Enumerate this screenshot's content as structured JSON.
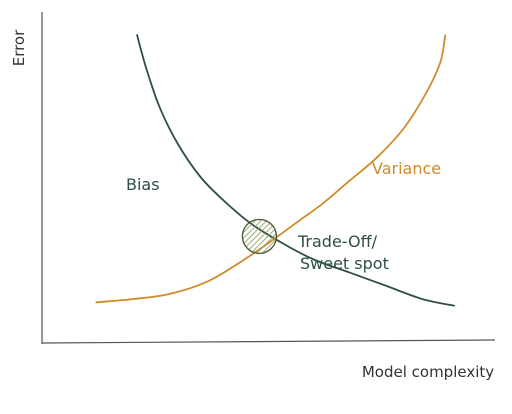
{
  "chart_data": {
    "type": "line",
    "title": "",
    "xlabel": "Model complexity",
    "ylabel": "Error",
    "xlim": [
      0,
      10
    ],
    "ylim": [
      0,
      10
    ],
    "grid": false,
    "series": [
      {
        "name": "Bias",
        "color": "#2e4f46",
        "x": [
          2.1,
          2.3,
          2.6,
          3.0,
          3.5,
          4.0,
          4.6,
          5.3,
          6.0,
          6.8,
          7.6,
          8.4,
          9.1
        ],
        "y": [
          9.3,
          8.3,
          7.1,
          6.0,
          5.0,
          4.3,
          3.6,
          3.0,
          2.5,
          2.1,
          1.7,
          1.3,
          1.1
        ]
      },
      {
        "name": "Variance",
        "color": "#d08a2a",
        "x": [
          1.2,
          2.0,
          2.8,
          3.6,
          4.3,
          5.0,
          5.6,
          6.2,
          6.8,
          7.4,
          8.0,
          8.5,
          8.8,
          8.9
        ],
        "y": [
          1.2,
          1.3,
          1.45,
          1.8,
          2.35,
          3.0,
          3.6,
          4.2,
          4.9,
          5.6,
          6.5,
          7.6,
          8.5,
          9.3
        ]
      }
    ],
    "annotations": [
      {
        "label_lines": [
          "Trade-Off/",
          "Sweet spot"
        ],
        "x": 4.8,
        "y": 3.2,
        "marker": "circle",
        "marker_color": "#9aae6a"
      }
    ]
  }
}
